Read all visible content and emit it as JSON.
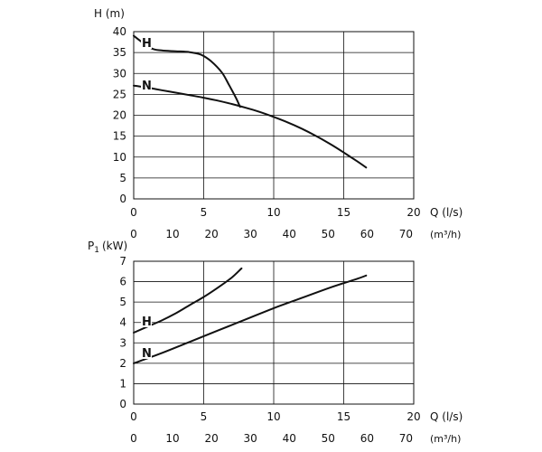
{
  "chart_data": [
    {
      "type": "line",
      "ylabel": "H (m)",
      "xlabel": "Q (l/s)",
      "xlabel2": "(m³/h)",
      "xlim": [
        0,
        20
      ],
      "ylim": [
        0,
        40
      ],
      "xticks": [
        "0",
        "5",
        "10",
        "15",
        "20"
      ],
      "xticks2": [
        "0",
        "10",
        "20",
        "30",
        "40",
        "50",
        "60",
        "70"
      ],
      "yticks": [
        "0",
        "5",
        "10",
        "15",
        "20",
        "25",
        "30",
        "35",
        "40"
      ],
      "grid": true,
      "series": [
        {
          "name": "H",
          "x": [
            0,
            1.2,
            2,
            3,
            4,
            4.8,
            5.5,
            6.3,
            6.8,
            7.3,
            7.6
          ],
          "y": [
            39,
            36.1,
            35.5,
            35.3,
            35.1,
            34.5,
            33,
            30.2,
            27.3,
            24.2,
            22
          ]
        },
        {
          "name": "N",
          "x": [
            0,
            1,
            2,
            3,
            4,
            5,
            6,
            7,
            8,
            9,
            10,
            11,
            12,
            13,
            14,
            15,
            16,
            16.6
          ],
          "y": [
            27.1,
            26.6,
            26.0,
            25.4,
            24.8,
            24.2,
            23.5,
            22.7,
            21.8,
            20.8,
            19.6,
            18.3,
            16.8,
            15.1,
            13.2,
            11.1,
            8.9,
            7.5
          ]
        }
      ]
    },
    {
      "type": "line",
      "ylabel": "P1 (kW)",
      "ylabel_main": "P",
      "ylabel_sub": "1",
      "ylabel_unit": "(kW)",
      "xlabel": "Q (l/s)",
      "xlabel2": "(m³/h)",
      "xlim": [
        0,
        20
      ],
      "ylim": [
        0,
        7
      ],
      "xticks": [
        "0",
        "5",
        "10",
        "15",
        "20"
      ],
      "xticks2": [
        "0",
        "10",
        "20",
        "30",
        "40",
        "50",
        "60",
        "70"
      ],
      "yticks": [
        "0",
        "1",
        "2",
        "3",
        "4",
        "5",
        "6",
        "7"
      ],
      "grid": true,
      "series": [
        {
          "name": "H",
          "x": [
            0,
            1,
            2,
            3,
            4,
            5,
            6,
            7,
            7.7
          ],
          "y": [
            3.5,
            3.8,
            4.1,
            4.45,
            4.85,
            5.25,
            5.7,
            6.2,
            6.65
          ]
        },
        {
          "name": "N",
          "x": [
            0,
            2,
            4,
            6,
            8,
            10,
            12,
            14,
            16,
            16.6
          ],
          "y": [
            2.0,
            2.5,
            3.05,
            3.6,
            4.15,
            4.7,
            5.2,
            5.7,
            6.15,
            6.3
          ]
        }
      ]
    }
  ]
}
